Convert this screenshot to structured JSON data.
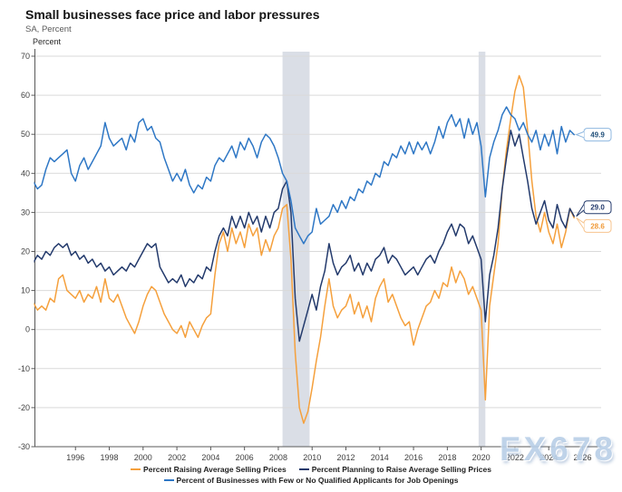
{
  "header": {
    "title": "Small businesses face price and labor pressures",
    "subtitle": "SA, Percent",
    "y_axis_header": "Percent"
  },
  "watermark": "FX678",
  "colors": {
    "raising": "#F5A03C",
    "planning": "#233A6C",
    "applicants": "#2E77C5",
    "gridline": "#D9D9D9",
    "axis": "#595959",
    "tick_text": "#404040",
    "recession_band": "#DADEE6"
  },
  "legend": {
    "items": [
      {
        "id": "raising",
        "label": "Percent Raising Average Selling Prices",
        "color": "#F5A03C"
      },
      {
        "id": "planning",
        "label": "Percent Planning to Raise Average Selling Prices",
        "color": "#233A6C"
      },
      {
        "id": "applicants",
        "label": "Percent of Businesses with Few or No Qualified Applicants for Job Openings",
        "color": "#2E77C5"
      }
    ]
  },
  "chart_data": {
    "type": "line",
    "title": "Small businesses face price and labor pressures",
    "xlabel": "",
    "ylabel": "Percent",
    "grid": true,
    "legend_position": "bottom",
    "xlim": [
      1993.6,
      2027.1
    ],
    "ylim": [
      -30,
      70
    ],
    "x_ticks": [
      1996,
      1998,
      2000,
      2002,
      2004,
      2006,
      2008,
      2010,
      2012,
      2014,
      2016,
      2018,
      2020,
      2022,
      2024,
      2026
    ],
    "y_ticks": [
      -30,
      -20,
      -10,
      0,
      10,
      20,
      30,
      40,
      50,
      60,
      70
    ],
    "recession_bands": [
      [
        2008.25,
        2009.85
      ],
      [
        2019.85,
        2020.25
      ]
    ],
    "x_start": 1993.5,
    "x_step": 0.25,
    "series": [
      {
        "id": "raising",
        "name": "Percent Raising Average Selling Prices",
        "color": "#F5A03C",
        "values": [
          7,
          5,
          6,
          5,
          8,
          7,
          13,
          14,
          10,
          9,
          8,
          10,
          7,
          9,
          8,
          11,
          7,
          13,
          8,
          7,
          9,
          6,
          3,
          1,
          -1,
          2,
          6,
          9,
          11,
          10,
          7,
          4,
          2,
          0,
          -1,
          1,
          -2,
          2,
          0,
          -2,
          1,
          3,
          4,
          14,
          22,
          25,
          20,
          26,
          22,
          25,
          21,
          27,
          24,
          26,
          19,
          23,
          20,
          24,
          26,
          31,
          32,
          18,
          -6,
          -20,
          -24,
          -21,
          -15,
          -8,
          -2,
          6,
          13,
          6,
          3,
          5,
          6,
          9,
          4,
          7,
          3,
          6,
          2,
          8,
          11,
          13,
          7,
          9,
          6,
          3,
          1,
          2,
          -4,
          0,
          3,
          6,
          7,
          10,
          8,
          12,
          11,
          16,
          12,
          15,
          13,
          9,
          11,
          8,
          5,
          -18,
          6,
          14,
          22,
          36,
          46,
          54,
          61,
          65,
          62,
          51,
          38,
          29,
          25,
          30,
          25,
          22,
          27,
          21,
          25,
          31,
          28.6
        ]
      },
      {
        "id": "planning",
        "name": "Percent Planning to Raise Average Selling Prices",
        "color": "#233A6C",
        "values": [
          17,
          19,
          18,
          20,
          19,
          21,
          22,
          21,
          22,
          19,
          20,
          18,
          19,
          17,
          18,
          16,
          17,
          15,
          16,
          14,
          15,
          16,
          15,
          17,
          16,
          18,
          20,
          22,
          21,
          22,
          16,
          14,
          12,
          13,
          12,
          14,
          11,
          13,
          12,
          14,
          13,
          16,
          15,
          20,
          24,
          26,
          24,
          29,
          26,
          29,
          26,
          30,
          27,
          29,
          25,
          29,
          26,
          30,
          31,
          36,
          38,
          30,
          8,
          -3,
          1,
          5,
          9,
          5,
          11,
          15,
          22,
          17,
          14,
          16,
          17,
          19,
          15,
          17,
          14,
          17,
          15,
          18,
          19,
          21,
          17,
          19,
          18,
          16,
          14,
          15,
          16,
          14,
          16,
          18,
          19,
          17,
          20,
          22,
          25,
          27,
          24,
          27,
          26,
          22,
          24,
          21,
          18,
          2,
          14,
          19,
          26,
          36,
          44,
          51,
          47,
          50,
          44,
          38,
          31,
          27,
          30,
          33,
          28,
          26,
          32,
          28,
          26,
          31,
          29.0
        ]
      },
      {
        "id": "applicants",
        "name": "Percent of Businesses with Few or No Qualified Applicants for Job Openings",
        "color": "#2E77C5",
        "values": [
          38,
          36,
          37,
          41,
          44,
          43,
          44,
          45,
          46,
          40,
          38,
          42,
          44,
          41,
          43,
          45,
          47,
          53,
          49,
          47,
          48,
          49,
          46,
          50,
          48,
          53,
          54,
          51,
          52,
          49,
          48,
          44,
          41,
          38,
          40,
          38,
          41,
          37,
          35,
          37,
          36,
          39,
          38,
          42,
          44,
          43,
          45,
          47,
          44,
          48,
          46,
          49,
          47,
          44,
          48,
          50,
          49,
          47,
          44,
          40,
          38,
          33,
          26,
          24,
          22,
          24,
          25,
          31,
          27,
          28,
          29,
          32,
          30,
          33,
          31,
          34,
          33,
          36,
          35,
          38,
          37,
          40,
          39,
          43,
          42,
          45,
          44,
          47,
          45,
          48,
          45,
          48,
          46,
          48,
          45,
          48,
          52,
          49,
          53,
          55,
          52,
          54,
          49,
          54,
          50,
          53,
          47,
          34,
          44,
          48,
          51,
          55,
          57,
          55,
          54,
          51,
          53,
          50,
          48,
          51,
          46,
          50,
          47,
          51,
          45,
          52,
          48,
          51,
          49.9
        ]
      }
    ],
    "end_labels": [
      {
        "label": "49.9",
        "value": 49.9,
        "series": "applicants",
        "text_color": "#1F4E79",
        "border_color": "#8FB8E0"
      },
      {
        "label": "29.0",
        "value": 29.0,
        "series": "planning",
        "text_color": "#233A6C",
        "border_color": "#233A6C"
      },
      {
        "label": "28.6",
        "value": 28.6,
        "series": "raising",
        "text_color": "#F09A38",
        "border_color": "#F7C48E"
      }
    ]
  }
}
